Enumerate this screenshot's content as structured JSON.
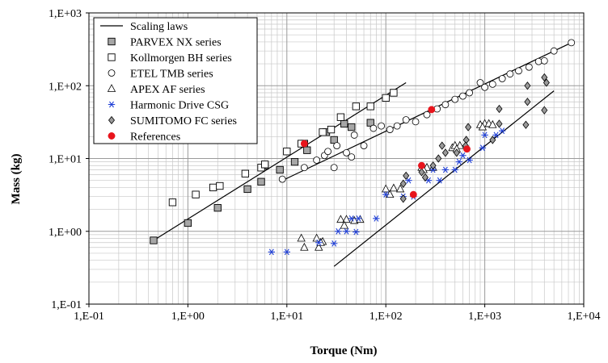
{
  "chart_data": {
    "type": "scatter",
    "xlabel": "Torque (Nm)",
    "ylabel": "Mass (kg)",
    "xscale": "log",
    "yscale": "log",
    "xlim": [
      0.1,
      10000
    ],
    "ylim": [
      0.1,
      1000
    ],
    "grid": true,
    "legend_position": "top-left",
    "x_tick_labels": [
      "1,E-01",
      "1,E+00",
      "1,E+01",
      "1,E+02",
      "1,E+03",
      "1,E+04"
    ],
    "y_tick_labels": [
      "1,E-01",
      "1,E+00",
      "1,E+01",
      "1,E+02",
      "1,E+03"
    ],
    "colors": {
      "line": "#000000",
      "parvex_fill": "#a6a6a6",
      "harmonic": "#1f3fd6",
      "sumitomo_fill": "#9a9a9a",
      "references": "#e8141c",
      "grid": "#c8c8c8"
    },
    "series": [
      {
        "name": "Scaling laws",
        "marker": "line",
        "segments": [
          [
            [
              0.45,
              0.75
            ],
            [
              160,
              110
            ]
          ],
          [
            [
              8.5,
              4.8
            ],
            [
              7800,
              400
            ]
          ],
          [
            [
              30,
              0.33
            ],
            [
              5000,
              85
            ]
          ]
        ]
      },
      {
        "name": "PARVEX NX series",
        "marker": "square-gray",
        "points": [
          [
            0.45,
            0.75
          ],
          [
            1.0,
            1.3
          ],
          [
            2.0,
            2.1
          ],
          [
            4.0,
            3.8
          ],
          [
            5.5,
            4.8
          ],
          [
            6.0,
            8.0
          ],
          [
            8.5,
            7.0
          ],
          [
            12,
            9.0
          ],
          [
            15,
            16
          ],
          [
            16,
            13
          ],
          [
            25,
            23
          ],
          [
            30,
            18
          ],
          [
            38,
            30
          ],
          [
            45,
            27
          ],
          [
            70,
            31
          ]
        ]
      },
      {
        "name": "Kollmorgen BH series",
        "marker": "square-open",
        "points": [
          [
            0.7,
            2.5
          ],
          [
            1.2,
            3.2
          ],
          [
            1.8,
            4.0
          ],
          [
            2.1,
            4.2
          ],
          [
            3.8,
            6.2
          ],
          [
            5.5,
            7.5
          ],
          [
            6.0,
            8.3
          ],
          [
            10,
            12.5
          ],
          [
            14,
            16
          ],
          [
            23,
            23
          ],
          [
            28,
            25
          ],
          [
            35,
            37
          ],
          [
            50,
            52
          ],
          [
            70,
            52
          ],
          [
            100,
            68
          ],
          [
            120,
            80
          ]
        ]
      },
      {
        "name": "ETEL TMB series",
        "marker": "circle-open",
        "points": [
          [
            9,
            5.2
          ],
          [
            15,
            7.5
          ],
          [
            20,
            9.5
          ],
          [
            24,
            11
          ],
          [
            26,
            12.5
          ],
          [
            32,
            15
          ],
          [
            40,
            12
          ],
          [
            48,
            21
          ],
          [
            60,
            15
          ],
          [
            75,
            26
          ],
          [
            90,
            28
          ],
          [
            110,
            25
          ],
          [
            130,
            28
          ],
          [
            160,
            34
          ],
          [
            200,
            32
          ],
          [
            260,
            40
          ],
          [
            330,
            48
          ],
          [
            400,
            55
          ],
          [
            500,
            65
          ],
          [
            600,
            72
          ],
          [
            700,
            80
          ],
          [
            900,
            110
          ],
          [
            1000,
            95
          ],
          [
            1200,
            105
          ],
          [
            1500,
            125
          ],
          [
            1800,
            145
          ],
          [
            2200,
            160
          ],
          [
            2800,
            180
          ],
          [
            3500,
            215
          ],
          [
            4000,
            220
          ],
          [
            5000,
            300
          ],
          [
            7500,
            390
          ],
          [
            30,
            7.5
          ],
          [
            45,
            10.5
          ]
        ]
      },
      {
        "name": "APEX AF series",
        "marker": "triangle-open",
        "points": [
          [
            14,
            0.8
          ],
          [
            20,
            0.8
          ],
          [
            21,
            0.6
          ],
          [
            23,
            0.72
          ],
          [
            35,
            1.45
          ],
          [
            40,
            1.45
          ],
          [
            48,
            1.4
          ],
          [
            55,
            1.45
          ],
          [
            100,
            3.8
          ],
          [
            120,
            3.9
          ],
          [
            140,
            3.8
          ],
          [
            230,
            7.5
          ],
          [
            260,
            7.5
          ],
          [
            300,
            7.5
          ],
          [
            470,
            14
          ],
          [
            500,
            15
          ],
          [
            560,
            15
          ],
          [
            900,
            29
          ],
          [
            1000,
            30
          ],
          [
            1100,
            30
          ],
          [
            1200,
            29
          ],
          [
            15,
            0.6
          ],
          [
            22,
            0.7
          ],
          [
            38,
            1.2
          ],
          [
            110,
            3.2
          ],
          [
            240,
            7.0
          ],
          [
            520,
            13.5
          ],
          [
            950,
            27
          ]
        ]
      },
      {
        "name": "Harmonic Drive CSG",
        "marker": "asterisk-blue",
        "points": [
          [
            7,
            0.52
          ],
          [
            10,
            0.52
          ],
          [
            21,
            0.7
          ],
          [
            30,
            0.68
          ],
          [
            33,
            1.0
          ],
          [
            40,
            1.0
          ],
          [
            50,
            0.98
          ],
          [
            53,
            1.5
          ],
          [
            80,
            1.5
          ],
          [
            100,
            3.2
          ],
          [
            150,
            3.0
          ],
          [
            170,
            5.0
          ],
          [
            190,
            3.0
          ],
          [
            230,
            8.0
          ],
          [
            270,
            5.0
          ],
          [
            350,
            5.0
          ],
          [
            400,
            7.0
          ],
          [
            500,
            7.0
          ],
          [
            550,
            9.0
          ],
          [
            600,
            11
          ],
          [
            950,
            14
          ],
          [
            1000,
            21
          ],
          [
            1300,
            21
          ],
          [
            1500,
            24
          ],
          [
            45,
            1.5
          ],
          [
            300,
            7.0
          ],
          [
            700,
            9.5
          ]
        ]
      },
      {
        "name": "SUMITOMO FC series",
        "marker": "diamond-gray",
        "points": [
          [
            150,
            2.8
          ],
          [
            150,
            4.5
          ],
          [
            160,
            5.8
          ],
          [
            230,
            6.5
          ],
          [
            300,
            8.0
          ],
          [
            340,
            10
          ],
          [
            370,
            15
          ],
          [
            400,
            12
          ],
          [
            520,
            12
          ],
          [
            650,
            18
          ],
          [
            680,
            27
          ],
          [
            1200,
            18
          ],
          [
            1400,
            30
          ],
          [
            1400,
            48
          ],
          [
            2600,
            29
          ],
          [
            2700,
            60
          ],
          [
            2700,
            100
          ],
          [
            4000,
            46
          ],
          [
            4000,
            130
          ],
          [
            4200,
            110
          ],
          [
            250,
            5.5
          ],
          [
            640,
            15
          ]
        ]
      },
      {
        "name": "References",
        "marker": "circle-red",
        "points": [
          [
            15,
            16
          ],
          [
            290,
            47
          ],
          [
            230,
            8.0
          ],
          [
            190,
            3.2
          ],
          [
            660,
            13.5
          ]
        ]
      }
    ]
  }
}
